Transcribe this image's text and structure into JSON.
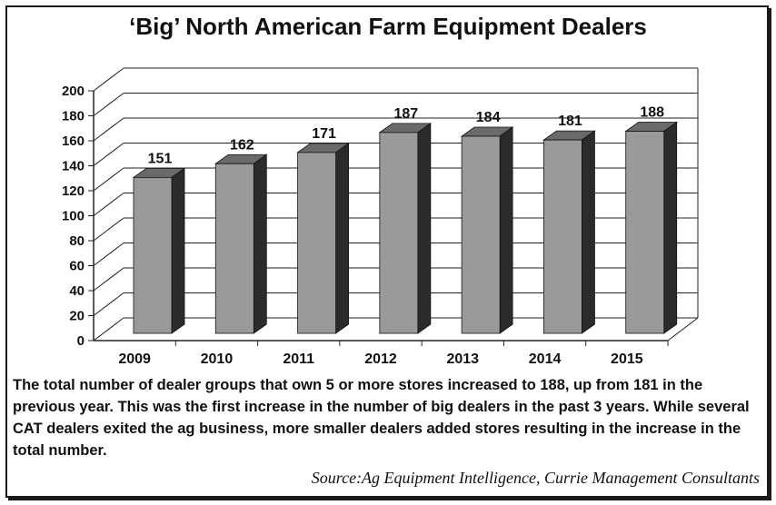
{
  "chart_data": {
    "type": "bar",
    "title": "‘Big’ North American Farm Equipment Dealers",
    "categories": [
      "2009",
      "2010",
      "2011",
      "2012",
      "2013",
      "2014",
      "2015"
    ],
    "values": [
      151,
      162,
      171,
      187,
      184,
      181,
      188
    ],
    "ylim": [
      0,
      200
    ],
    "yticks": [
      0,
      20,
      40,
      60,
      80,
      100,
      120,
      140,
      160,
      180,
      200
    ],
    "xlabel": "",
    "ylabel": "",
    "grid": true,
    "legend": "none"
  },
  "caption": "The total number of dealer groups that own 5 or more stores increased to 188, up from 181 in the previous year. This was the first increase in the number of big dealers in the past 3 years. While several CAT dealers exited the ag business, more smaller dealers added stores resulting in the increase in the total number.",
  "source": "Source:Ag Equipment Intelligence, Currie Management Consultants",
  "colors": {
    "bar_front": "#9a9a9a",
    "bar_side": "#2b2b2b",
    "bar_top": "#6a6a6a",
    "grid": "#222222"
  }
}
